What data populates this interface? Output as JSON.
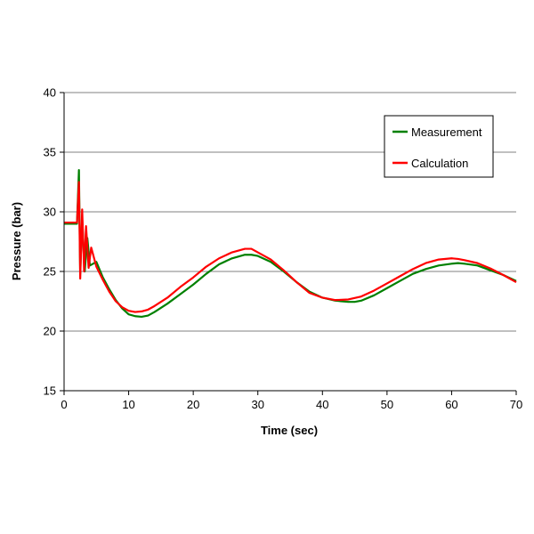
{
  "chart_data": {
    "type": "line",
    "title": "",
    "xlabel": "Time (sec)",
    "ylabel": "Pressure (bar)",
    "xlim": [
      0,
      70
    ],
    "ylim": [
      15,
      40
    ],
    "xticks": [
      0,
      10,
      20,
      30,
      40,
      50,
      60,
      70
    ],
    "yticks": [
      15,
      20,
      25,
      30,
      35,
      40
    ],
    "grid": "horizontal",
    "legend_position": "top-right",
    "series": [
      {
        "name": "Measurement",
        "color": "#008000",
        "points": [
          [
            0,
            29.0
          ],
          [
            2.0,
            29.0
          ],
          [
            2.3,
            33.5
          ],
          [
            2.5,
            24.8
          ],
          [
            2.8,
            29.5
          ],
          [
            3.2,
            25.0
          ],
          [
            3.6,
            27.8
          ],
          [
            4.0,
            25.5
          ],
          [
            5,
            25.8
          ],
          [
            6,
            24.5
          ],
          [
            7,
            23.5
          ],
          [
            8,
            22.6
          ],
          [
            9,
            21.9
          ],
          [
            10,
            21.4
          ],
          [
            11,
            21.25
          ],
          [
            12,
            21.2
          ],
          [
            13,
            21.3
          ],
          [
            14,
            21.6
          ],
          [
            16,
            22.3
          ],
          [
            18,
            23.1
          ],
          [
            20,
            23.9
          ],
          [
            22,
            24.8
          ],
          [
            24,
            25.6
          ],
          [
            26,
            26.1
          ],
          [
            28,
            26.4
          ],
          [
            29,
            26.4
          ],
          [
            30,
            26.3
          ],
          [
            32,
            25.8
          ],
          [
            34,
            25.0
          ],
          [
            36,
            24.1
          ],
          [
            38,
            23.3
          ],
          [
            40,
            22.8
          ],
          [
            42,
            22.55
          ],
          [
            44,
            22.45
          ],
          [
            45,
            22.45
          ],
          [
            46,
            22.55
          ],
          [
            48,
            23.0
          ],
          [
            50,
            23.6
          ],
          [
            52,
            24.2
          ],
          [
            54,
            24.8
          ],
          [
            56,
            25.2
          ],
          [
            58,
            25.5
          ],
          [
            60,
            25.65
          ],
          [
            61,
            25.7
          ],
          [
            62,
            25.65
          ],
          [
            64,
            25.5
          ],
          [
            66,
            25.1
          ],
          [
            68,
            24.7
          ],
          [
            70,
            24.2
          ]
        ]
      },
      {
        "name": "Calculation",
        "color": "#ff0000",
        "points": [
          [
            0,
            29.1
          ],
          [
            2.0,
            29.1
          ],
          [
            2.3,
            32.5
          ],
          [
            2.5,
            24.4
          ],
          [
            2.8,
            30.2
          ],
          [
            3.1,
            25.0
          ],
          [
            3.4,
            28.8
          ],
          [
            3.8,
            25.3
          ],
          [
            4.2,
            27.0
          ],
          [
            5,
            25.4
          ],
          [
            6,
            24.3
          ],
          [
            7,
            23.3
          ],
          [
            8,
            22.5
          ],
          [
            9,
            22.0
          ],
          [
            10,
            21.7
          ],
          [
            11,
            21.6
          ],
          [
            12,
            21.65
          ],
          [
            13,
            21.8
          ],
          [
            14,
            22.1
          ],
          [
            16,
            22.8
          ],
          [
            18,
            23.7
          ],
          [
            20,
            24.5
          ],
          [
            22,
            25.4
          ],
          [
            24,
            26.1
          ],
          [
            26,
            26.6
          ],
          [
            28,
            26.9
          ],
          [
            29,
            26.9
          ],
          [
            30,
            26.6
          ],
          [
            32,
            26.0
          ],
          [
            34,
            25.1
          ],
          [
            36,
            24.1
          ],
          [
            38,
            23.2
          ],
          [
            40,
            22.8
          ],
          [
            42,
            22.6
          ],
          [
            44,
            22.65
          ],
          [
            46,
            22.9
          ],
          [
            48,
            23.4
          ],
          [
            50,
            24.0
          ],
          [
            52,
            24.6
          ],
          [
            54,
            25.2
          ],
          [
            56,
            25.7
          ],
          [
            58,
            26.0
          ],
          [
            60,
            26.1
          ],
          [
            61,
            26.05
          ],
          [
            62,
            25.95
          ],
          [
            64,
            25.7
          ],
          [
            66,
            25.25
          ],
          [
            68,
            24.7
          ],
          [
            70,
            24.1
          ]
        ]
      }
    ]
  }
}
